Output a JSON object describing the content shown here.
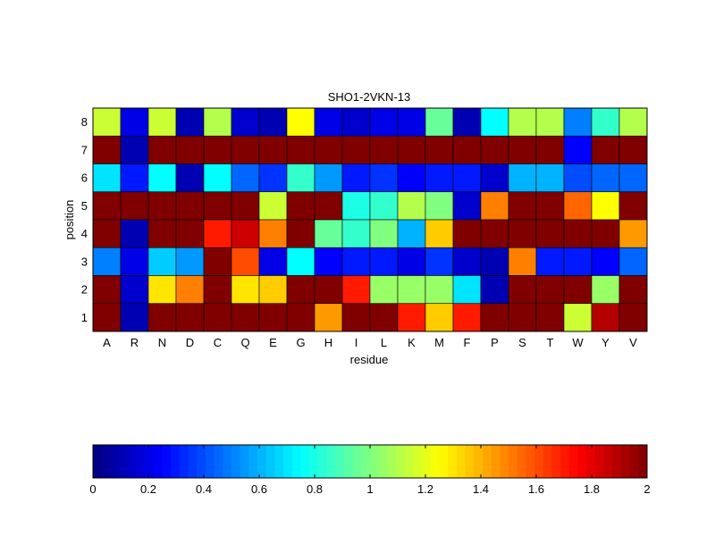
{
  "chart_data": {
    "type": "heatmap",
    "title": "SHO1-2VKN-13",
    "xlabel": "residue",
    "ylabel": "position",
    "x_categories": [
      "A",
      "R",
      "N",
      "D",
      "C",
      "Q",
      "E",
      "G",
      "H",
      "I",
      "L",
      "K",
      "M",
      "F",
      "P",
      "S",
      "T",
      "W",
      "Y",
      "V"
    ],
    "y_categories": [
      "8",
      "7",
      "6",
      "5",
      "4",
      "3",
      "2",
      "1"
    ],
    "values": [
      [
        1.15,
        0.2,
        1.15,
        0.1,
        1.1,
        0.15,
        0.1,
        1.25,
        0.2,
        0.15,
        0.2,
        0.2,
        0.95,
        0.1,
        0.75,
        1.1,
        1.1,
        0.5,
        0.85,
        1.1
      ],
      [
        2.0,
        0.1,
        2.0,
        2.0,
        2.0,
        2.0,
        2.0,
        2.0,
        2.0,
        2.0,
        2.0,
        2.0,
        2.0,
        2.0,
        2.0,
        2.0,
        2.0,
        0.25,
        2.0,
        2.0
      ],
      [
        0.7,
        0.3,
        0.75,
        0.1,
        0.75,
        0.45,
        0.35,
        0.85,
        0.55,
        0.3,
        0.35,
        0.25,
        0.3,
        0.3,
        0.15,
        0.6,
        0.6,
        0.4,
        0.45,
        0.45
      ],
      [
        2.0,
        2.0,
        2.0,
        2.0,
        2.0,
        2.0,
        1.15,
        2.0,
        2.0,
        0.8,
        0.85,
        1.1,
        1.0,
        0.15,
        1.5,
        2.0,
        2.0,
        1.55,
        1.25,
        2.0
      ],
      [
        2.0,
        0.1,
        2.0,
        2.0,
        1.7,
        1.85,
        1.5,
        2.0,
        0.95,
        0.85,
        1.0,
        0.6,
        1.35,
        2.0,
        2.0,
        2.0,
        2.0,
        2.0,
        2.0,
        1.45
      ],
      [
        0.5,
        0.2,
        0.65,
        0.55,
        2.0,
        1.6,
        0.2,
        0.75,
        0.25,
        0.3,
        0.3,
        0.2,
        0.35,
        0.15,
        0.1,
        1.5,
        0.3,
        0.3,
        0.25,
        0.45
      ],
      [
        2.0,
        0.15,
        1.3,
        1.5,
        2.0,
        1.3,
        1.35,
        2.0,
        2.0,
        1.7,
        1.05,
        1.05,
        1.05,
        0.7,
        0.1,
        2.0,
        2.0,
        2.0,
        1.05,
        2.0
      ],
      [
        2.0,
        0.1,
        2.0,
        2.0,
        2.0,
        2.0,
        2.0,
        2.0,
        1.45,
        2.0,
        2.0,
        1.7,
        1.35,
        1.7,
        2.0,
        2.0,
        2.0,
        1.15,
        1.9,
        2.0
      ]
    ],
    "zlim": [
      0,
      2
    ],
    "colormap": "jet",
    "colorbar": {
      "orientation": "horizontal",
      "ticks": [
        0,
        0.2,
        0.4,
        0.6,
        0.8,
        1,
        1.2,
        1.4,
        1.6,
        1.8,
        2
      ],
      "tick_labels": [
        "0",
        "0.2",
        "0.4",
        "0.6",
        "0.8",
        "1",
        "1.2",
        "1.4",
        "1.6",
        "1.8",
        "2"
      ]
    },
    "grid": false
  }
}
